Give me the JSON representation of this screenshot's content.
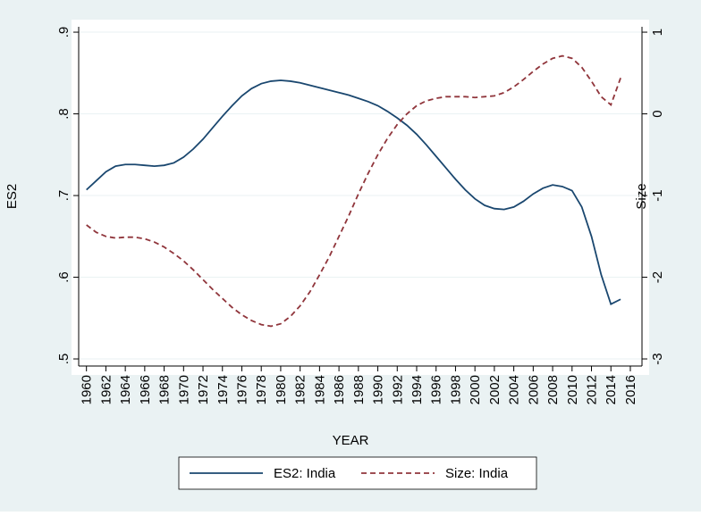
{
  "chart_data": {
    "type": "line",
    "xlabel": "YEAR",
    "ylabel": "ES2",
    "y2label": "Size",
    "x": [
      1960,
      1961,
      1962,
      1963,
      1964,
      1965,
      1966,
      1967,
      1968,
      1969,
      1970,
      1971,
      1972,
      1973,
      1974,
      1975,
      1976,
      1977,
      1978,
      1979,
      1980,
      1981,
      1982,
      1983,
      1984,
      1985,
      1986,
      1987,
      1988,
      1989,
      1990,
      1991,
      1992,
      1993,
      1994,
      1995,
      1996,
      1997,
      1998,
      1999,
      2000,
      2001,
      2002,
      2003,
      2004,
      2005,
      2006,
      2007,
      2008,
      2009,
      2010,
      2011,
      2012,
      2013,
      2014,
      2015
    ],
    "series": [
      {
        "name": "ES2: India",
        "color": "#1a476f",
        "dash": false,
        "values": [
          0.707,
          0.718,
          0.729,
          0.736,
          0.738,
          0.738,
          0.737,
          0.736,
          0.737,
          0.74,
          0.747,
          0.757,
          0.769,
          0.783,
          0.797,
          0.81,
          0.822,
          0.831,
          0.837,
          0.84,
          0.841,
          0.84,
          0.838,
          0.835,
          0.832,
          0.829,
          0.826,
          0.823,
          0.819,
          0.815,
          0.81,
          0.803,
          0.795,
          0.786,
          0.775,
          0.762,
          0.748,
          0.734,
          0.72,
          0.707,
          0.696,
          0.688,
          0.684,
          0.683,
          0.686,
          0.693,
          0.702,
          0.709,
          0.713,
          0.711,
          0.706,
          0.686,
          0.65,
          0.603,
          0.567,
          0.573
        ]
      },
      {
        "name": "Size: India",
        "color": "#90353b",
        "dash": true,
        "axis": "y2",
        "values": [
          -1.36,
          -1.45,
          -1.5,
          -1.52,
          -1.51,
          -1.51,
          -1.53,
          -1.57,
          -1.63,
          -1.71,
          -1.8,
          -1.91,
          -2.03,
          -2.15,
          -2.26,
          -2.37,
          -2.46,
          -2.53,
          -2.58,
          -2.6,
          -2.57,
          -2.48,
          -2.35,
          -2.18,
          -1.97,
          -1.75,
          -1.5,
          -1.25,
          -0.98,
          -0.73,
          -0.5,
          -0.3,
          -0.13,
          0.0,
          0.1,
          0.16,
          0.19,
          0.21,
          0.21,
          0.21,
          0.2,
          0.21,
          0.22,
          0.26,
          0.33,
          0.42,
          0.52,
          0.61,
          0.68,
          0.71,
          0.68,
          0.57,
          0.4,
          0.21,
          0.11,
          0.44
        ]
      }
    ],
    "xlim": [
      1959.2,
      2017.2
    ],
    "xticks": [
      1960,
      1962,
      1964,
      1966,
      1968,
      1970,
      1972,
      1974,
      1976,
      1978,
      1980,
      1982,
      1984,
      1986,
      1988,
      1990,
      1992,
      1994,
      1996,
      1998,
      2000,
      2002,
      2004,
      2006,
      2008,
      2010,
      2012,
      2014,
      2016
    ],
    "ylim": [
      0.4913,
      0.9066
    ],
    "yticks": [
      {
        "value": 0.5,
        "label": ".5"
      },
      {
        "value": 0.6,
        "label": ".6"
      },
      {
        "value": 0.7,
        "label": ".7"
      },
      {
        "value": 0.8,
        "label": ".8"
      },
      {
        "value": 0.9,
        "label": ".9"
      }
    ],
    "y2lim": [
      -3.087,
      1.066
    ],
    "y2ticks": [
      -3,
      -2,
      -1,
      0,
      1
    ],
    "grid": true,
    "legend": "bottom"
  }
}
